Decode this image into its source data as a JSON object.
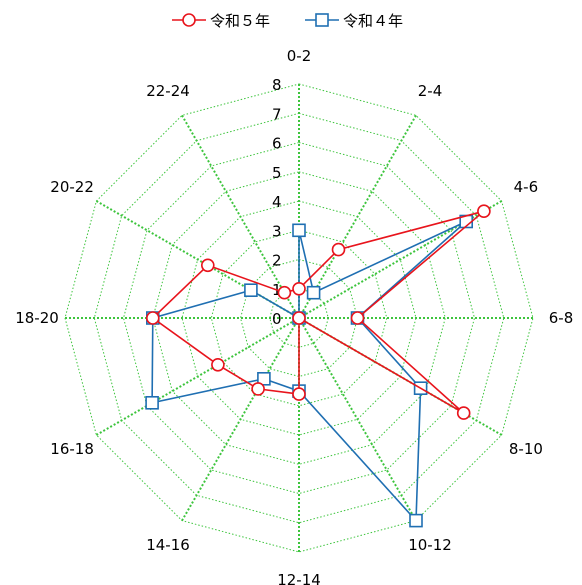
{
  "chart_data": {
    "type": "radar",
    "categories": [
      "0-2",
      "2-4",
      "4-6",
      "6-8",
      "8-10",
      "10-12",
      "12-14",
      "14-16",
      "16-18",
      "18-20",
      "20-22",
      "22-24"
    ],
    "rlim": [
      0,
      8
    ],
    "r_ticks": [
      "0",
      "1",
      "2",
      "3",
      "4",
      "5",
      "6",
      "7",
      "8"
    ],
    "grid": true,
    "legend_position": "top",
    "series": [
      {
        "name": "令和５年",
        "color": "#e8141c",
        "marker": "circle",
        "values": [
          1.0,
          2.7,
          7.3,
          2.0,
          6.5,
          0.0,
          2.6,
          2.8,
          3.2,
          5.0,
          3.6,
          1.0
        ]
      },
      {
        "name": "令和４年",
        "color": "#1f6fb2",
        "marker": "square",
        "values": [
          3.0,
          1.0,
          6.6,
          2.0,
          4.8,
          8.0,
          2.5,
          2.4,
          5.8,
          5.0,
          1.9,
          0.0
        ]
      }
    ]
  }
}
